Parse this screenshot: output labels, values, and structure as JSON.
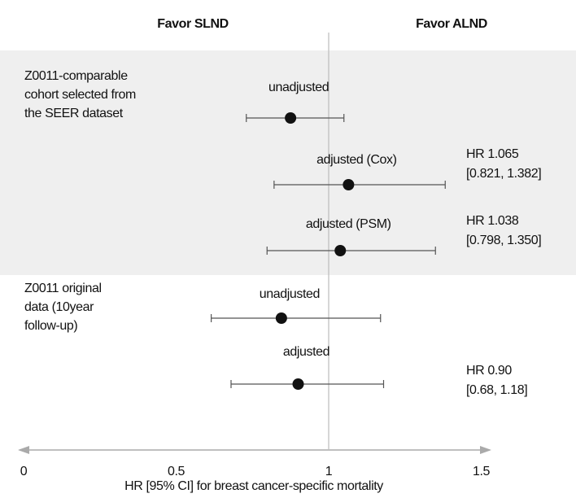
{
  "chart_data": {
    "type": "forest",
    "headers": [
      "Favor SLND",
      "Favor ALND"
    ],
    "x_label": "HR [95% CI] for breast cancer-specific mortality",
    "xlim": [
      0,
      1.5
    ],
    "xticks": [
      0,
      0.5,
      1,
      1.5
    ],
    "reference_line": 1,
    "groups": [
      {
        "lines": [
          "Z0011-comparable",
          "cohort selected from",
          "the SEER dataset"
        ],
        "shaded": true
      },
      {
        "lines": [
          "Z0011 original",
          "data (10year",
          "follow-up)"
        ],
        "shaded": false
      }
    ],
    "rows": [
      {
        "label": "unadjusted",
        "value": 0.875,
        "lower": 0.73,
        "upper": 1.05
      },
      {
        "label": "adjusted  (Cox)",
        "value": 1.065,
        "lower": 0.821,
        "upper": 1.382,
        "value_label": "HR 1.065",
        "ci_label": "[0.821, 1.382]"
      },
      {
        "label": "adjusted  (PSM)",
        "value": 1.038,
        "lower": 0.798,
        "upper": 1.35,
        "value_label": "HR 1.038",
        "ci_label": "[0.798, 1.350]"
      },
      {
        "label": "unadjusted",
        "value": 0.845,
        "lower": 0.615,
        "upper": 1.17
      },
      {
        "label": "adjusted",
        "value": 0.9,
        "lower": 0.68,
        "upper": 1.18,
        "value_label": "HR 0.90",
        "ci_label": "[0.68, 1.18]"
      }
    ],
    "point_color": "#111111",
    "ci_color": "#555555",
    "shade_color": "#efefef"
  }
}
